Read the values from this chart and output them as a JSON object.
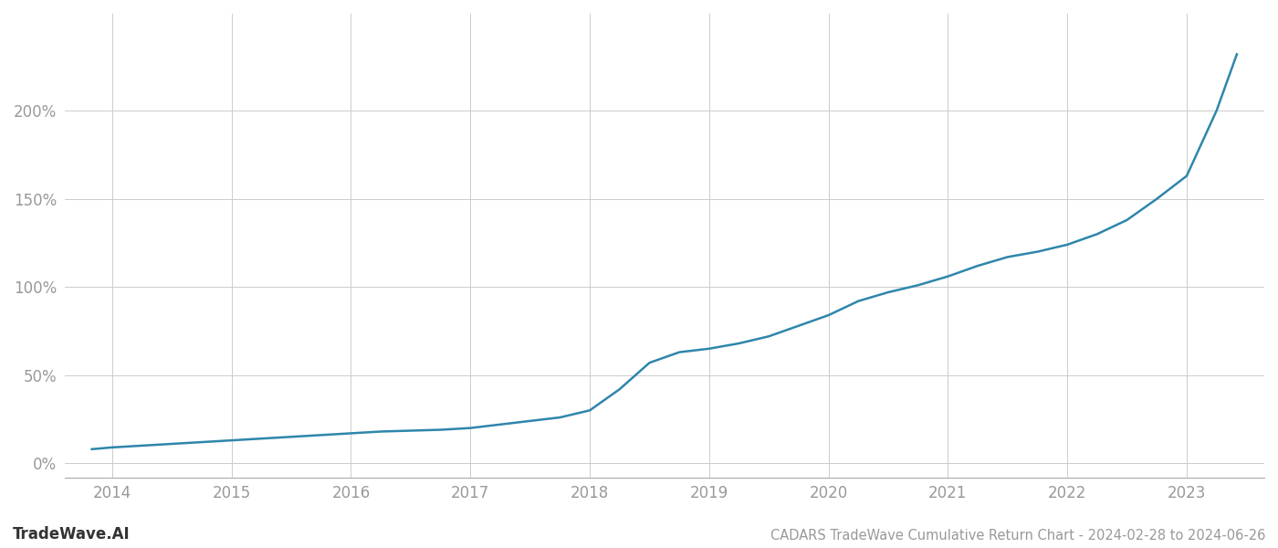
{
  "title": "CADARS TradeWave Cumulative Return Chart - 2024-02-28 to 2024-06-26",
  "watermark": "TradeWave.AI",
  "line_color": "#2e86ab",
  "background_color": "#ffffff",
  "grid_color": "#cccccc",
  "x_years": [
    2014,
    2015,
    2016,
    2017,
    2018,
    2019,
    2020,
    2021,
    2022,
    2023
  ],
  "x_data": [
    2013.83,
    2014.0,
    2014.25,
    2014.5,
    2014.75,
    2015.0,
    2015.25,
    2015.5,
    2015.75,
    2016.0,
    2016.25,
    2016.5,
    2016.75,
    2017.0,
    2017.25,
    2017.5,
    2017.75,
    2018.0,
    2018.25,
    2018.5,
    2018.75,
    2019.0,
    2019.25,
    2019.5,
    2019.75,
    2020.0,
    2020.25,
    2020.5,
    2020.75,
    2021.0,
    2021.25,
    2021.5,
    2021.75,
    2022.0,
    2022.25,
    2022.5,
    2022.75,
    2023.0,
    2023.25,
    2023.42
  ],
  "y_data": [
    8,
    9,
    10,
    11,
    12,
    13,
    14,
    15,
    16,
    17,
    18,
    18.5,
    19,
    20,
    22,
    24,
    26,
    30,
    42,
    57,
    63,
    65,
    68,
    72,
    78,
    84,
    92,
    97,
    101,
    106,
    112,
    117,
    120,
    124,
    130,
    138,
    150,
    163,
    200,
    232
  ],
  "yticks": [
    0,
    50,
    100,
    150,
    200
  ],
  "ytick_labels": [
    "0%",
    "50%",
    "100%",
    "150%",
    "200%"
  ],
  "ylim": [
    -8,
    255
  ],
  "xlim": [
    2013.6,
    2023.65
  ],
  "title_fontsize": 10.5,
  "tick_fontsize": 12,
  "watermark_fontsize": 12,
  "line_width": 1.8
}
